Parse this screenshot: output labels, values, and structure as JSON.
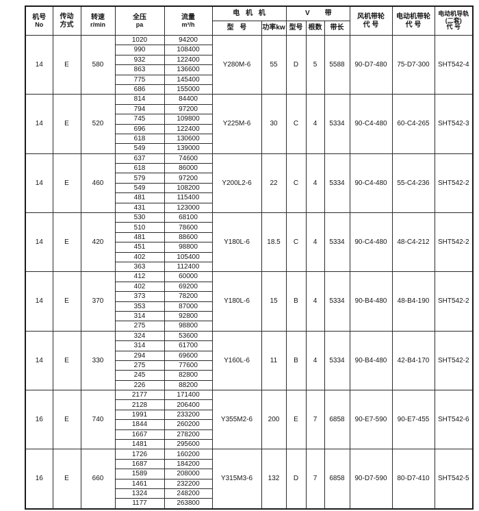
{
  "colors": {
    "border": "#1a1a1a",
    "text": "#141414",
    "background": "#ffffff"
  },
  "header": {
    "machine_no": {
      "line1": "机号",
      "line2": "No"
    },
    "transmission": {
      "line1": "传动",
      "line2": "方式"
    },
    "speed": {
      "line1": "转速",
      "line2": "r/min"
    },
    "pressure": {
      "line1": "全压",
      "line2": "pa"
    },
    "flow": {
      "line1": "流量",
      "line2": "m³/h"
    },
    "motor_group": "电 机 机",
    "motor_model": "型 号",
    "motor_power": "功率kw",
    "vbelt_left": "V",
    "vbelt_right": "带",
    "vbelt_type": "型号",
    "vbelt_count": "根数",
    "vbelt_length": "带长",
    "fan_pulley": {
      "line1": "风机带轮",
      "line2": "代 号"
    },
    "motor_pulley": {
      "line1": "电动机带轮",
      "line2": "代 号"
    },
    "rail": {
      "line1": "电动机导轨",
      "line2": "(二套)",
      "line3": "代 号"
    }
  },
  "groups": [
    {
      "machine_no": "14",
      "transmission": "E",
      "speed": "580",
      "rows": [
        [
          "1020",
          "94200"
        ],
        [
          "990",
          "108400"
        ],
        [
          "932",
          "122400"
        ],
        [
          "863",
          "136600"
        ],
        [
          "775",
          "145400"
        ],
        [
          "686",
          "155000"
        ]
      ],
      "motor_model": "Y280M-6",
      "power": "55",
      "belt_type": "D",
      "belt_count": "5",
      "belt_length": "5588",
      "fan_pulley": "90-D7-480",
      "motor_pulley": "75-D7-300",
      "rail": "SHT542-4"
    },
    {
      "machine_no": "14",
      "transmission": "E",
      "speed": "520",
      "rows": [
        [
          "814",
          "84400"
        ],
        [
          "794",
          "97200"
        ],
        [
          "745",
          "109800"
        ],
        [
          "696",
          "122400"
        ],
        [
          "618",
          "130600"
        ],
        [
          "549",
          "139000"
        ]
      ],
      "motor_model": "Y225M-6",
      "power": "30",
      "belt_type": "C",
      "belt_count": "4",
      "belt_length": "5334",
      "fan_pulley": "90-C4-480",
      "motor_pulley": "60-C4-265",
      "rail": "SHT542-3"
    },
    {
      "machine_no": "14",
      "transmission": "E",
      "speed": "460",
      "rows": [
        [
          "637",
          "74600"
        ],
        [
          "618",
          "86000"
        ],
        [
          "579",
          "97200"
        ],
        [
          "549",
          "108200"
        ],
        [
          "481",
          "115400"
        ],
        [
          "431",
          "123000"
        ]
      ],
      "motor_model": "Y200L2-6",
      "power": "22",
      "belt_type": "C",
      "belt_count": "4",
      "belt_length": "5334",
      "fan_pulley": "90-C4-480",
      "motor_pulley": "55-C4-236",
      "rail": "SHT542-2"
    },
    {
      "machine_no": "14",
      "transmission": "E",
      "speed": "420",
      "rows": [
        [
          "530",
          "68100"
        ],
        [
          "510",
          "78600"
        ],
        [
          "481",
          "88600"
        ],
        [
          "451",
          "98800"
        ],
        [
          "402",
          "105400"
        ],
        [
          "363",
          "112400"
        ]
      ],
      "motor_model": "Y180L-6",
      "power": "18.5",
      "belt_type": "C",
      "belt_count": "4",
      "belt_length": "5334",
      "fan_pulley": "90-C4-480",
      "motor_pulley": "48-C4-212",
      "rail": "SHT542-2"
    },
    {
      "machine_no": "14",
      "transmission": "E",
      "speed": "370",
      "rows": [
        [
          "412",
          "60000"
        ],
        [
          "402",
          "69200"
        ],
        [
          "373",
          "78200"
        ],
        [
          "353",
          "87000"
        ],
        [
          "314",
          "92800"
        ],
        [
          "275",
          "98800"
        ]
      ],
      "motor_model": "Y180L-6",
      "power": "15",
      "belt_type": "B",
      "belt_count": "4",
      "belt_length": "5334",
      "fan_pulley": "90-B4-480",
      "motor_pulley": "48-B4-190",
      "rail": "SHT542-2"
    },
    {
      "machine_no": "14",
      "transmission": "E",
      "speed": "330",
      "rows": [
        [
          "324",
          "53600"
        ],
        [
          "314",
          "61700"
        ],
        [
          "294",
          "69600"
        ],
        [
          "275",
          "77600"
        ],
        [
          "245",
          "82800"
        ],
        [
          "226",
          "88200"
        ]
      ],
      "motor_model": "Y160L-6",
      "power": "11",
      "belt_type": "B",
      "belt_count": "4",
      "belt_length": "5334",
      "fan_pulley": "90-B4-480",
      "motor_pulley": "42-B4-170",
      "rail": "SHT542-2"
    },
    {
      "machine_no": "16",
      "transmission": "E",
      "speed": "740",
      "rows": [
        [
          "2177",
          "171400"
        ],
        [
          "2128",
          "206400"
        ],
        [
          "1991",
          "233200"
        ],
        [
          "1844",
          "260200"
        ],
        [
          "1667",
          "278200"
        ],
        [
          "1481",
          "295600"
        ]
      ],
      "motor_model": "Y355M2-6",
      "power": "200",
      "belt_type": "E",
      "belt_count": "7",
      "belt_length": "6858",
      "fan_pulley": "90-E7-590",
      "motor_pulley": "90-E7-455",
      "rail": "SHT542-6"
    },
    {
      "machine_no": "16",
      "transmission": "E",
      "speed": "660",
      "rows": [
        [
          "1726",
          "160200"
        ],
        [
          "1687",
          "184200"
        ],
        [
          "1589",
          "208000"
        ],
        [
          "1461",
          "232200"
        ],
        [
          "1324",
          "248200"
        ],
        [
          "1177",
          "263800"
        ]
      ],
      "motor_model": "Y315M3-6",
      "power": "132",
      "belt_type": "D",
      "belt_count": "7",
      "belt_length": "6858",
      "fan_pulley": "90-D7-590",
      "motor_pulley": "80-D7-410",
      "rail": "SHT542-5"
    }
  ]
}
